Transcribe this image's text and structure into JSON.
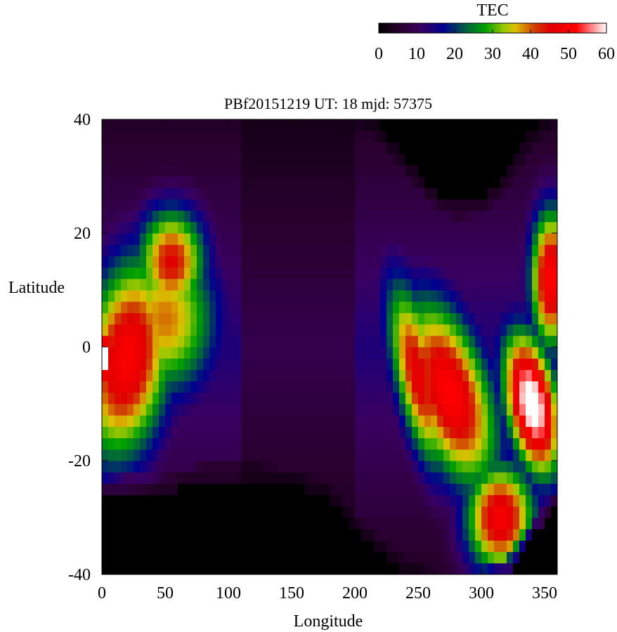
{
  "chart_data": {
    "type": "heatmap",
    "title": "PBf20151219  UT: 18  mjd: 57375",
    "xlabel": "Longitude",
    "ylabel": "Latitude",
    "xlim": [
      0,
      360
    ],
    "ylim": [
      -40,
      40
    ],
    "x_ticks": [
      "0",
      "50",
      "100",
      "150",
      "200",
      "250",
      "300",
      "350"
    ],
    "x_tick_values": [
      0,
      50,
      100,
      150,
      200,
      250,
      300,
      350
    ],
    "y_ticks": [
      "40",
      "20",
      "0",
      "-20",
      "-40"
    ],
    "y_tick_values": [
      40,
      20,
      0,
      -20,
      -40
    ],
    "colorbar": {
      "label": "TEC",
      "range": [
        0,
        60
      ],
      "ticks": [
        "0",
        "10",
        "20",
        "30",
        "40",
        "50",
        "60"
      ],
      "tick_values": [
        0,
        10,
        20,
        30,
        40,
        50,
        60
      ],
      "palette": [
        {
          "v": 0,
          "color": "#000000"
        },
        {
          "v": 6,
          "color": "#2a0030"
        },
        {
          "v": 11,
          "color": "#3a0060"
        },
        {
          "v": 17,
          "color": "#000090"
        },
        {
          "v": 23,
          "color": "#006040"
        },
        {
          "v": 28,
          "color": "#00a000"
        },
        {
          "v": 33,
          "color": "#9ac800"
        },
        {
          "v": 36,
          "color": "#dcc000"
        },
        {
          "v": 41,
          "color": "#d04000"
        },
        {
          "v": 45,
          "color": "#e00000"
        },
        {
          "v": 52,
          "color": "#ff0000"
        },
        {
          "v": 56,
          "color": "#ff8080"
        },
        {
          "v": 60,
          "color": "#ffffff"
        }
      ]
    },
    "grid": false,
    "cell_size_deg": {
      "lon": 5,
      "lat": 2
    },
    "features": [
      {
        "kind": "peak",
        "lon": 20,
        "lat": -2,
        "value": 47,
        "sx": 26,
        "sy": 13,
        "stretch": 10
      },
      {
        "kind": "peak",
        "lon": 2,
        "lat": -2,
        "value": 58,
        "sx": 5,
        "sy": 4,
        "stretch": 0
      },
      {
        "kind": "peak",
        "lon": 55,
        "lat": 15,
        "value": 41,
        "sx": 20,
        "sy": 7,
        "stretch": 0
      },
      {
        "kind": "peak",
        "lon": 50,
        "lat": 5,
        "value": 35,
        "sx": 30,
        "sy": 10,
        "stretch": 0
      },
      {
        "kind": "peak",
        "lon": 275,
        "lat": -8,
        "value": 48,
        "sx": 24,
        "sy": 12,
        "stretch": -22
      },
      {
        "kind": "peak",
        "lon": 250,
        "lat": -5,
        "value": 43,
        "sx": 14,
        "sy": 12,
        "stretch": -18
      },
      {
        "kind": "peak",
        "lon": 340,
        "lat": -10,
        "value": 60,
        "sx": 15,
        "sy": 9,
        "stretch": -14
      },
      {
        "kind": "peak",
        "lon": 355,
        "lat": 12,
        "value": 48,
        "sx": 12,
        "sy": 9,
        "stretch": 0
      },
      {
        "kind": "peak",
        "lon": 315,
        "lat": -30,
        "value": 46,
        "sx": 20,
        "sy": 7,
        "stretch": 0
      }
    ],
    "background_levels": [
      {
        "lon_from": 0,
        "lon_to": 110,
        "value": 14
      },
      {
        "lon_from": 110,
        "lon_to": 200,
        "value": 9
      },
      {
        "lon_from": 200,
        "lon_to": 360,
        "value": 14
      }
    ],
    "nodata_regions": [
      {
        "edge": "south",
        "lon": [
          0,
          20,
          40,
          60,
          80,
          100,
          120,
          140,
          160,
          180,
          200,
          220,
          240,
          260,
          280,
          300,
          320,
          340,
          360
        ],
        "lat": [
          -26,
          -25,
          -26,
          -25,
          -23,
          -23,
          -23,
          -24,
          -25,
          -27,
          -32,
          -36,
          -40,
          -42,
          -42,
          -42,
          -40,
          -33,
          -28
        ]
      },
      {
        "edge": "north",
        "lon": [
          0,
          50,
          100,
          150,
          200,
          220,
          240,
          260,
          280,
          300,
          320,
          340,
          360
        ],
        "lat": [
          42,
          42,
          42,
          42,
          42,
          39,
          33,
          28,
          25,
          26,
          30,
          38,
          42
        ]
      }
    ]
  }
}
